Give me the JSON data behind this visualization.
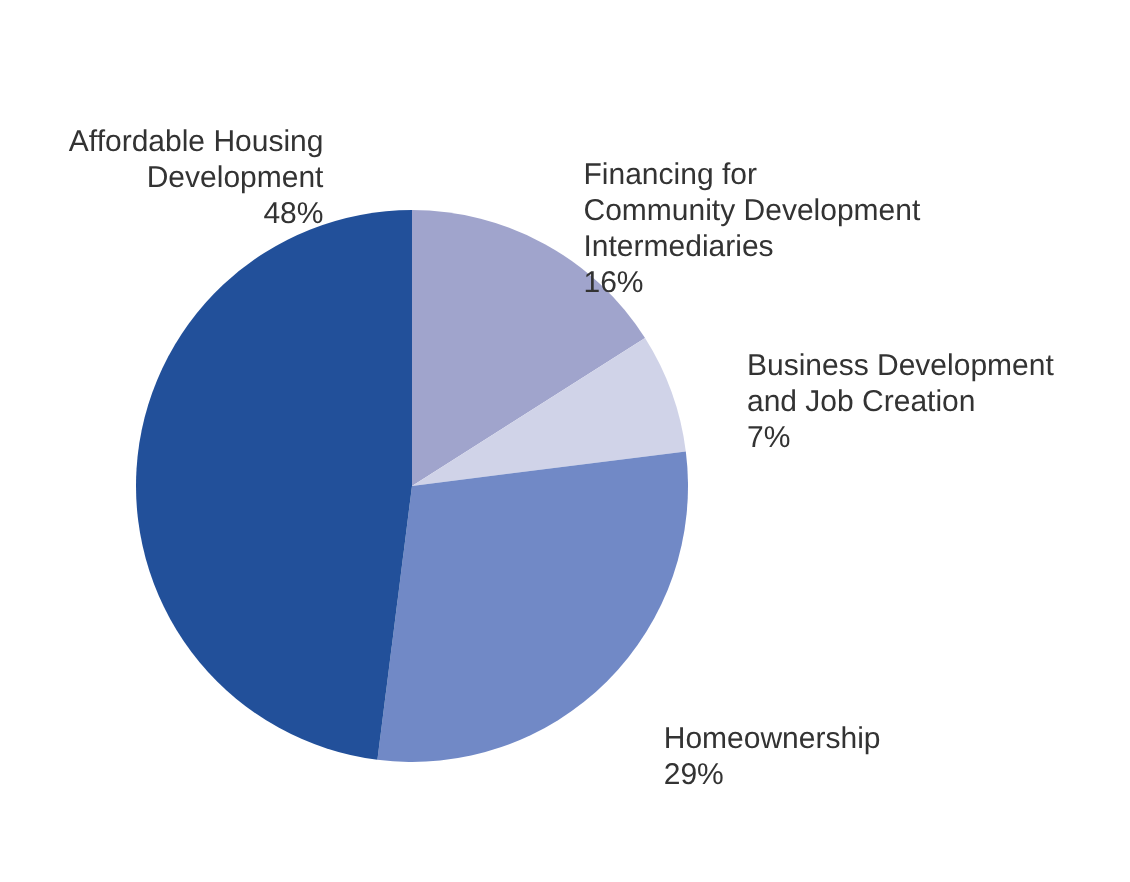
{
  "chart_data": {
    "type": "pie",
    "categories": [
      "Financing for Community Development Intermediaries",
      "Business Development and Job Creation",
      "Homeownership",
      "Affordable Housing Development"
    ],
    "values": [
      16,
      7,
      29,
      48
    ],
    "value_labels": [
      "16%",
      "7%",
      "29%",
      "48%"
    ],
    "colors": [
      "#a0a4cc",
      "#d0d3e8",
      "#7189c6",
      "#22509a"
    ],
    "legend": false
  }
}
